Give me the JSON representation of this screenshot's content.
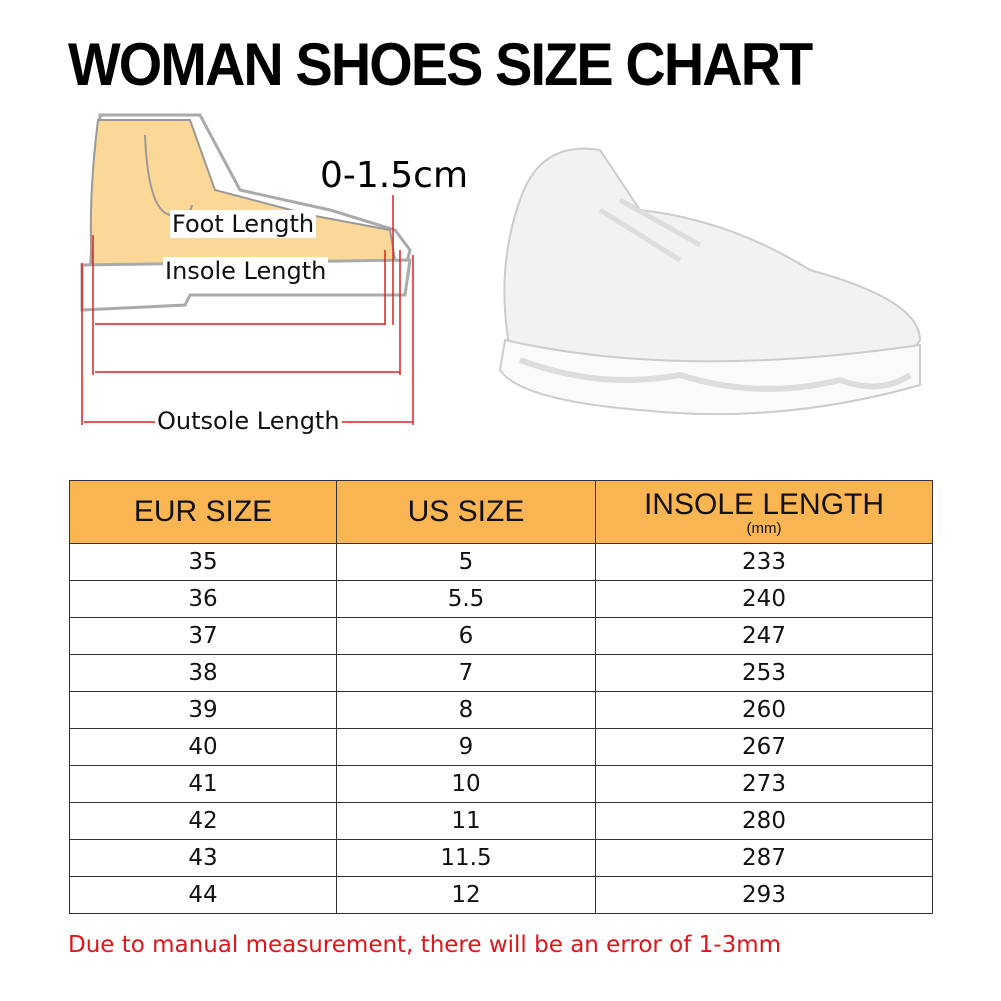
{
  "title": "WOMAN SHOES SIZE CHART",
  "diagram": {
    "tolerance": "0-1.5cm",
    "foot_length": "Foot Length",
    "insole_length": "Insole Length",
    "outsole_length": "Outsole Length"
  },
  "table": {
    "headers": [
      "EUR SIZE",
      "US SIZE",
      "INSOLE  LENGTH"
    ],
    "header_unit": "(mm)",
    "header_color": "#f9b551",
    "rows": [
      [
        "35",
        "5",
        "233"
      ],
      [
        "36",
        "5.5",
        "240"
      ],
      [
        "37",
        "6",
        "247"
      ],
      [
        "38",
        "7",
        "253"
      ],
      [
        "39",
        "8",
        "260"
      ],
      [
        "40",
        "9",
        "267"
      ],
      [
        "41",
        "10",
        "273"
      ],
      [
        "42",
        "11",
        "280"
      ],
      [
        "43",
        "11.5",
        "287"
      ],
      [
        "44",
        "12",
        "293"
      ]
    ]
  },
  "note": "Due to manual measurement, there will be an error of 1-3mm",
  "note_color": "#e0141a"
}
